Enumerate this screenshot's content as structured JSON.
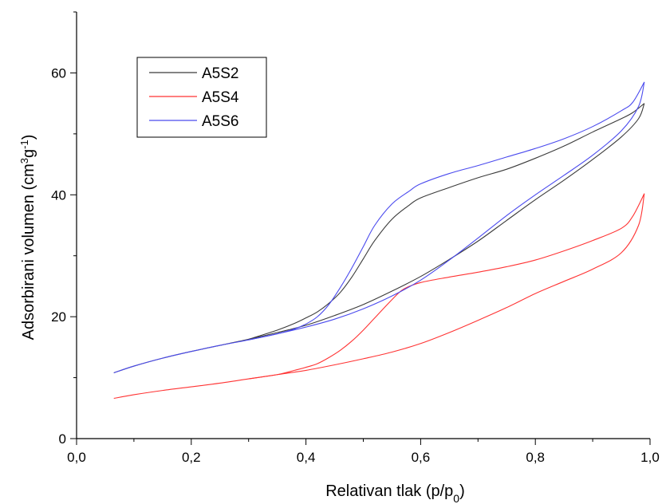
{
  "chart_data": {
    "type": "line",
    "title": "",
    "xlabel": "Relativan tlak (p/p",
    "xlabel_sub": "0",
    "xlabel_end": ")",
    "ylabel": "Adsorbirani volumen (cm",
    "ylabel_sup1": "3",
    "ylabel_mid": "g",
    "ylabel_sup2": "-1",
    "ylabel_end": ")",
    "xlim": [
      0.0,
      1.0
    ],
    "ylim": [
      0,
      70
    ],
    "x_ticks": [
      {
        "value": 0.0,
        "label": "0,0"
      },
      {
        "value": 0.2,
        "label": "0,2"
      },
      {
        "value": 0.4,
        "label": "0,4"
      },
      {
        "value": 0.6,
        "label": "0,6"
      },
      {
        "value": 0.8,
        "label": "0,8"
      },
      {
        "value": 1.0,
        "label": "1,0"
      }
    ],
    "y_ticks": [
      {
        "value": 0,
        "label": "0"
      },
      {
        "value": 20,
        "label": "20"
      },
      {
        "value": 40,
        "label": "40"
      },
      {
        "value": 60,
        "label": "60"
      }
    ],
    "legend_position": "top-left",
    "grid": false,
    "series": [
      {
        "name": "A5S2",
        "color": "#3a3a3a",
        "adsorption": {
          "x": [
            0.065,
            0.1,
            0.15,
            0.2,
            0.25,
            0.3,
            0.35,
            0.4,
            0.45,
            0.5,
            0.55,
            0.6,
            0.65,
            0.7,
            0.75,
            0.8,
            0.85,
            0.9,
            0.95,
            0.98,
            0.99
          ],
          "y": [
            10.8,
            11.9,
            13.2,
            14.3,
            15.3,
            16.3,
            17.4,
            18.6,
            20.2,
            22.0,
            24.2,
            26.6,
            29.4,
            32.4,
            35.8,
            39.2,
            42.4,
            45.8,
            49.5,
            52.5,
            55.0
          ]
        },
        "desorption": {
          "x": [
            0.99,
            0.97,
            0.95,
            0.9,
            0.85,
            0.8,
            0.75,
            0.7,
            0.65,
            0.6,
            0.58,
            0.55,
            0.52,
            0.5,
            0.48,
            0.46,
            0.44,
            0.42,
            0.4,
            0.38,
            0.35,
            0.3
          ],
          "y": [
            55.0,
            53.5,
            52.5,
            50.3,
            48.0,
            46.0,
            44.2,
            42.8,
            41.2,
            39.5,
            38.3,
            36.0,
            32.5,
            29.5,
            26.5,
            24.0,
            22.2,
            20.8,
            19.8,
            18.9,
            17.8,
            16.3
          ]
        }
      },
      {
        "name": "A5S4",
        "color": "#ff3333",
        "adsorption": {
          "x": [
            0.065,
            0.1,
            0.15,
            0.2,
            0.25,
            0.3,
            0.35,
            0.4,
            0.45,
            0.5,
            0.55,
            0.6,
            0.65,
            0.7,
            0.75,
            0.8,
            0.85,
            0.9,
            0.95,
            0.98,
            0.99
          ],
          "y": [
            6.6,
            7.2,
            7.9,
            8.5,
            9.1,
            9.8,
            10.5,
            11.2,
            12.1,
            13.1,
            14.2,
            15.6,
            17.4,
            19.4,
            21.5,
            23.8,
            25.8,
            27.8,
            30.5,
            35.0,
            40.2
          ]
        },
        "desorption": {
          "x": [
            0.99,
            0.97,
            0.95,
            0.9,
            0.85,
            0.8,
            0.75,
            0.7,
            0.65,
            0.6,
            0.57,
            0.55,
            0.52,
            0.5,
            0.48,
            0.46,
            0.44,
            0.42,
            0.4,
            0.38,
            0.35,
            0.3
          ],
          "y": [
            40.2,
            36.5,
            34.5,
            32.5,
            30.8,
            29.3,
            28.2,
            27.3,
            26.5,
            25.6,
            24.5,
            22.8,
            19.8,
            17.8,
            16.0,
            14.5,
            13.3,
            12.3,
            11.7,
            11.2,
            10.5,
            9.8
          ]
        }
      },
      {
        "name": "A5S6",
        "color": "#4a4aee",
        "adsorption": {
          "x": [
            0.065,
            0.1,
            0.15,
            0.2,
            0.25,
            0.3,
            0.35,
            0.4,
            0.45,
            0.5,
            0.55,
            0.6,
            0.65,
            0.7,
            0.75,
            0.8,
            0.85,
            0.9,
            0.95,
            0.98,
            0.99
          ],
          "y": [
            10.8,
            11.9,
            13.2,
            14.3,
            15.3,
            16.2,
            17.2,
            18.3,
            19.6,
            21.3,
            23.4,
            26.0,
            29.3,
            32.9,
            36.6,
            40.0,
            43.2,
            46.5,
            50.5,
            54.5,
            58.5
          ]
        },
        "desorption": {
          "x": [
            0.99,
            0.97,
            0.95,
            0.9,
            0.85,
            0.8,
            0.75,
            0.7,
            0.65,
            0.6,
            0.58,
            0.55,
            0.52,
            0.5,
            0.48,
            0.46,
            0.44,
            0.42,
            0.4,
            0.38,
            0.35,
            0.3
          ],
          "y": [
            58.5,
            55.2,
            53.8,
            51.2,
            49.2,
            47.6,
            46.2,
            44.8,
            43.5,
            41.8,
            40.6,
            38.5,
            35.0,
            31.5,
            28.0,
            24.8,
            22.0,
            20.0,
            18.8,
            18.0,
            17.2,
            16.2
          ]
        }
      }
    ]
  }
}
